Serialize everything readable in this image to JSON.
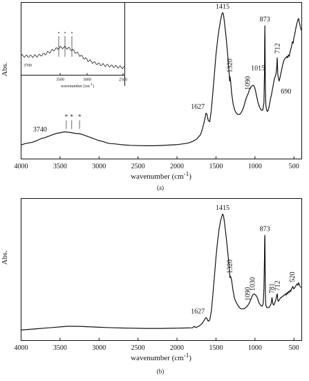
{
  "chart_data": [
    {
      "type": "line",
      "panel_label": "(a)",
      "ylabel": "Abs.",
      "xlabel": "wavenumber (cm",
      "xlabel_sup": "-1",
      "xlabel_end": ")",
      "xlim": [
        4000,
        400
      ],
      "xticks": [
        "4000",
        "3500",
        "3000",
        "2500",
        "2000",
        "1500",
        "1000",
        "500"
      ],
      "xtick_values": [
        4000,
        3500,
        3000,
        2500,
        2000,
        1500,
        1000,
        500
      ],
      "y_range": [
        0,
        1
      ],
      "series": [
        {
          "x": [
            4000,
            3950,
            3900,
            3850,
            3800,
            3760,
            3740,
            3700,
            3650,
            3600,
            3550,
            3500,
            3450,
            3420,
            3400,
            3380,
            3350,
            3300,
            3250,
            3200,
            3150,
            3100,
            3050,
            3000,
            2950,
            2900,
            2850,
            2800,
            2750,
            2700,
            2600,
            2500,
            2400,
            2300,
            2200,
            2100,
            2000,
            1900,
            1850,
            1800,
            1750,
            1700,
            1680,
            1660,
            1640,
            1627,
            1615,
            1600,
            1580,
            1560,
            1540,
            1520,
            1500,
            1480,
            1460,
            1440,
            1425,
            1415,
            1405,
            1390,
            1370,
            1350,
            1335,
            1325,
            1320,
            1312,
            1300,
            1280,
            1260,
            1240,
            1220,
            1200,
            1180,
            1160,
            1140,
            1120,
            1100,
            1090,
            1070,
            1050,
            1030,
            1015,
            1000,
            980,
            960,
            940,
            920,
            900,
            885,
            878,
            875,
            873,
            870,
            866,
            860,
            850,
            840,
            830,
            820,
            810,
            800,
            790,
            780,
            770,
            760,
            750,
            740,
            730,
            720,
            715,
            712,
            708,
            700,
            690,
            680,
            670,
            660,
            650,
            640,
            630,
            620,
            610,
            600,
            590,
            580,
            570,
            560,
            550,
            540,
            530,
            520,
            510,
            500,
            490,
            480,
            470,
            460,
            450,
            440,
            430,
            420,
            410
          ],
          "y": [
            0.06,
            0.07,
            0.075,
            0.08,
            0.09,
            0.1,
            0.105,
            0.11,
            0.12,
            0.13,
            0.14,
            0.145,
            0.15,
            0.15,
            0.148,
            0.147,
            0.145,
            0.14,
            0.138,
            0.13,
            0.12,
            0.11,
            0.1,
            0.09,
            0.085,
            0.075,
            0.07,
            0.068,
            0.065,
            0.062,
            0.058,
            0.056,
            0.055,
            0.055,
            0.057,
            0.06,
            0.063,
            0.07,
            0.075,
            0.085,
            0.1,
            0.13,
            0.16,
            0.2,
            0.25,
            0.28,
            0.27,
            0.23,
            0.22,
            0.3,
            0.42,
            0.55,
            0.68,
            0.78,
            0.86,
            0.92,
            0.96,
            0.97,
            0.96,
            0.9,
            0.8,
            0.68,
            0.58,
            0.5,
            0.53,
            0.5,
            0.42,
            0.34,
            0.3,
            0.28,
            0.27,
            0.27,
            0.28,
            0.3,
            0.33,
            0.37,
            0.4,
            0.41,
            0.44,
            0.46,
            0.47,
            0.47,
            0.45,
            0.4,
            0.35,
            0.32,
            0.3,
            0.3,
            0.35,
            0.55,
            0.78,
            0.88,
            0.7,
            0.45,
            0.33,
            0.3,
            0.29,
            0.3,
            0.32,
            0.35,
            0.38,
            0.4,
            0.43,
            0.46,
            0.49,
            0.52,
            0.53,
            0.55,
            0.6,
            0.66,
            0.62,
            0.55,
            0.52,
            0.5,
            0.52,
            0.55,
            0.57,
            0.6,
            0.62,
            0.64,
            0.65,
            0.66,
            0.66,
            0.67,
            0.66,
            0.68,
            0.67,
            0.7,
            0.72,
            0.74,
            0.77,
            0.76,
            0.8,
            0.82,
            0.85,
            0.88,
            0.9,
            0.92,
            0.93,
            0.9,
            0.88,
            0.85
          ]
        }
      ],
      "annotations": [
        {
          "text": "1415",
          "x": 1415,
          "y": 0.97
        },
        {
          "text": "873",
          "x": 873,
          "y": 0.88
        },
        {
          "text": "1320",
          "x": 1320,
          "y": 0.53
        },
        {
          "text": "1015",
          "x": 1015,
          "y": 0.47
        },
        {
          "text": "1090",
          "x": 1090,
          "y": 0.41
        },
        {
          "text": "712",
          "x": 712,
          "y": 0.66
        },
        {
          "text": "1627",
          "x": 1627,
          "y": 0.28
        },
        {
          "text": "690",
          "x": 690,
          "y": 0.5
        },
        {
          "text": "3740",
          "x": 3740,
          "y": 0.105
        }
      ],
      "markers": [
        {
          "text": "*",
          "x": 3420
        },
        {
          "text": "*",
          "x": 3350
        },
        {
          "text": "*",
          "x": 3250
        }
      ],
      "inset": {
        "xlabel": "wavenumber (cm",
        "xlabel_sup": "-1",
        "xlabel_end": ")",
        "xlim": [
          3800,
          2900
        ],
        "xticks": [
          "3500",
          "3000",
          "2500"
        ],
        "xtick_values": [
          3500,
          3000,
          2500
        ],
        "corner_tick": "3700",
        "markers": [
          {
            "text": "*",
            "x": 3450
          },
          {
            "text": "*",
            "x": 3390
          },
          {
            "text": "*",
            "x": 3330
          }
        ]
      }
    },
    {
      "type": "line",
      "panel_label": "(b)",
      "ylabel": "Abs.",
      "xlabel": "wavenumber (cm",
      "xlabel_sup": "-1",
      "xlabel_end": ")",
      "xlim": [
        4000,
        400
      ],
      "xticks": [
        "4000",
        "3500",
        "3000",
        "2500",
        "2000",
        "1500",
        "1000",
        "500"
      ],
      "xtick_values": [
        4000,
        3500,
        3000,
        2500,
        2000,
        1500,
        1000,
        500
      ],
      "y_range": [
        0,
        1
      ],
      "series": [
        {
          "x": [
            4000,
            3900,
            3800,
            3700,
            3600,
            3500,
            3400,
            3300,
            3200,
            3100,
            3000,
            2900,
            2800,
            2700,
            2600,
            2500,
            2400,
            2300,
            2200,
            2100,
            2000,
            1900,
            1800,
            1780,
            1760,
            1740,
            1720,
            1700,
            1680,
            1660,
            1640,
            1627,
            1615,
            1600,
            1580,
            1560,
            1540,
            1520,
            1500,
            1480,
            1460,
            1440,
            1425,
            1415,
            1405,
            1390,
            1370,
            1350,
            1335,
            1325,
            1320,
            1312,
            1300,
            1280,
            1260,
            1240,
            1220,
            1200,
            1180,
            1160,
            1140,
            1120,
            1100,
            1090,
            1070,
            1050,
            1030,
            1010,
            990,
            970,
            950,
            930,
            910,
            895,
            885,
            878,
            875,
            873,
            870,
            866,
            860,
            850,
            840,
            830,
            820,
            810,
            800,
            790,
            781,
            775,
            770,
            760,
            750,
            740,
            730,
            720,
            715,
            712,
            708,
            700,
            690,
            680,
            670,
            660,
            650,
            640,
            630,
            620,
            610,
            600,
            590,
            580,
            570,
            560,
            550,
            540,
            530,
            520,
            515,
            510,
            500,
            490,
            480,
            470,
            460,
            450,
            440,
            430,
            420,
            410
          ],
          "y": [
            0.02,
            0.025,
            0.03,
            0.035,
            0.04,
            0.045,
            0.05,
            0.05,
            0.048,
            0.045,
            0.042,
            0.04,
            0.038,
            0.036,
            0.035,
            0.034,
            0.033,
            0.033,
            0.033,
            0.034,
            0.035,
            0.036,
            0.038,
            0.05,
            0.04,
            0.045,
            0.05,
            0.06,
            0.07,
            0.09,
            0.11,
            0.12,
            0.11,
            0.09,
            0.1,
            0.17,
            0.3,
            0.45,
            0.6,
            0.73,
            0.83,
            0.9,
            0.93,
            0.95,
            0.94,
            0.88,
            0.77,
            0.65,
            0.55,
            0.47,
            0.44,
            0.45,
            0.42,
            0.33,
            0.27,
            0.24,
            0.22,
            0.2,
            0.19,
            0.19,
            0.19,
            0.2,
            0.21,
            0.22,
            0.24,
            0.27,
            0.3,
            0.31,
            0.3,
            0.28,
            0.24,
            0.22,
            0.21,
            0.23,
            0.35,
            0.6,
            0.75,
            0.78,
            0.58,
            0.3,
            0.22,
            0.2,
            0.2,
            0.2,
            0.2,
            0.21,
            0.22,
            0.24,
            0.28,
            0.25,
            0.23,
            0.22,
            0.23,
            0.25,
            0.27,
            0.3,
            0.31,
            0.3,
            0.26,
            0.25,
            0.26,
            0.27,
            0.28,
            0.28,
            0.29,
            0.29,
            0.3,
            0.3,
            0.31,
            0.3,
            0.32,
            0.31,
            0.33,
            0.32,
            0.34,
            0.33,
            0.35,
            0.36,
            0.37,
            0.36,
            0.35,
            0.36,
            0.37,
            0.38,
            0.39,
            0.38,
            0.4,
            0.38,
            0.37,
            0.36
          ]
        }
      ],
      "annotations": [
        {
          "text": "1415",
          "x": 1415,
          "y": 0.95
        },
        {
          "text": "873",
          "x": 873,
          "y": 0.78
        },
        {
          "text": "1320",
          "x": 1320,
          "y": 0.44
        },
        {
          "text": "1090",
          "x": 1090,
          "y": 0.22
        },
        {
          "text": "1030",
          "x": 1030,
          "y": 0.3
        },
        {
          "text": "781",
          "x": 781,
          "y": 0.28
        },
        {
          "text": "712",
          "x": 712,
          "y": 0.3
        },
        {
          "text": "520",
          "x": 520,
          "y": 0.37
        },
        {
          "text": "1627",
          "x": 1627,
          "y": 0.12
        }
      ]
    }
  ]
}
